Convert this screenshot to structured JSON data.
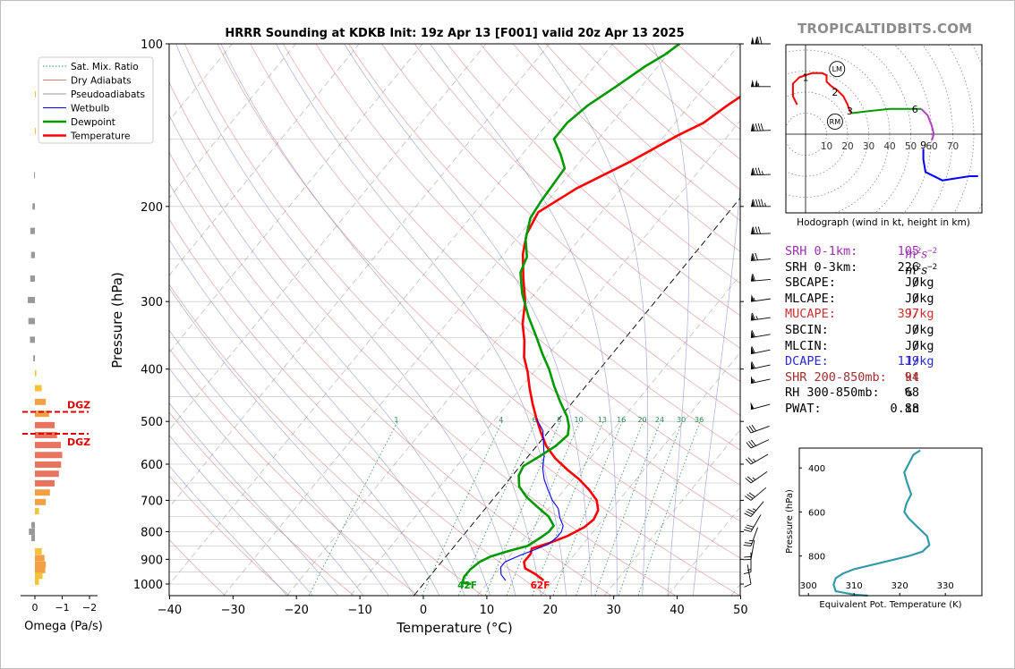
{
  "brand": "TROPICALTIDBITS.COM",
  "chart_data": [
    {
      "type": "line",
      "title": "HRRR Sounding at KDKB Init: 19z Apr 13 [F001] valid 20z Apr 13 2025",
      "xlabel": "Temperature (°C)",
      "ylabel": "Pressure (hPa)",
      "xlim": [
        -40,
        50
      ],
      "ylim": [
        1050,
        100
      ],
      "y_scale": "log",
      "x_ticks": [
        "−40",
        "−30",
        "−20",
        "−10",
        "0",
        "10",
        "20",
        "30",
        "40",
        "50"
      ],
      "y_ticks": [
        "100",
        "200",
        "300",
        "400",
        "500",
        "600",
        "700",
        "800",
        "900",
        "1000"
      ],
      "grid": true,
      "legend": {
        "position": "top-left",
        "entries": [
          {
            "name": "Sat. Mix. Ratio",
            "color": "#2e8b57"
          },
          {
            "name": "Dry Adiabats",
            "color": "#d88080"
          },
          {
            "name": "Pseudoadiabats",
            "color": "#999999"
          },
          {
            "name": "Wetbulb",
            "color": "#0000ff"
          },
          {
            "name": "Dewpoint",
            "color": "#009900"
          },
          {
            "name": "Temperature",
            "color": "#ff0000"
          }
        ]
      },
      "mixing_ratio_labels": [
        {
          "label": "1",
          "w": 1
        },
        {
          "label": "4",
          "w": 4
        },
        {
          "label": "6",
          "w": 6
        },
        {
          "label": "8",
          "w": 8
        },
        {
          "label": "10",
          "w": 10
        },
        {
          "label": "13",
          "w": 13
        },
        {
          "label": "16",
          "w": 16
        },
        {
          "label": "20",
          "w": 20
        },
        {
          "label": "24",
          "w": 24
        },
        {
          "label": "30",
          "w": 30
        },
        {
          "label": "36",
          "w": 36
        }
      ],
      "series": [
        {
          "name": "Temperature",
          "color": "#ff0000",
          "points": [
            [
              18.5,
              985
            ],
            [
              16.5,
              960
            ],
            [
              14,
              935
            ],
            [
              13,
              910
            ],
            [
              13,
              880
            ],
            [
              12.5,
              860
            ],
            [
              14.5,
              840
            ],
            [
              16.5,
              815
            ],
            [
              18,
              785
            ],
            [
              18.5,
              760
            ],
            [
              18,
              730
            ],
            [
              16.5,
              700
            ],
            [
              14,
              670
            ],
            [
              11,
              640
            ],
            [
              8,
              615
            ],
            [
              4.5,
              585
            ],
            [
              1.5,
              555
            ],
            [
              -1,
              525
            ],
            [
              -3.5,
              495
            ],
            [
              -6,
              465
            ],
            [
              -8.5,
              435
            ],
            [
              -11,
              405
            ],
            [
              -13.5,
              380
            ],
            [
              -15.5,
              355
            ],
            [
              -18,
              330
            ],
            [
              -20.5,
              300
            ],
            [
              -24,
              270
            ],
            [
              -27,
              245
            ],
            [
              -29,
              225
            ],
            [
              -30,
              205
            ],
            [
              -27,
              185
            ],
            [
              -22,
              165
            ],
            [
              -18,
              148
            ],
            [
              -15.5,
              140
            ],
            [
              -14,
              130
            ],
            [
              -12,
              120
            ],
            [
              -10,
              110
            ],
            [
              -8.5,
              103
            ],
            [
              -8,
              100
            ]
          ]
        },
        {
          "name": "Wetbulb",
          "color": "#0000ff",
          "points": [
            [
              12.5,
              985
            ],
            [
              11,
              960
            ],
            [
              10,
              930
            ],
            [
              10,
              910
            ],
            [
              11.5,
              885
            ],
            [
              13,
              865
            ],
            [
              14.5,
              845
            ],
            [
              15,
              820
            ],
            [
              15,
              800
            ],
            [
              14.5,
              780
            ],
            [
              13,
              755
            ],
            [
              11.5,
              725
            ],
            [
              9.5,
              700
            ],
            [
              7.5,
              670
            ],
            [
              5.5,
              640
            ],
            [
              3.8,
              610
            ],
            [
              2.5,
              580
            ],
            [
              0.8,
              550
            ],
            [
              -1,
              520
            ],
            [
              -3.5,
              495
            ]
          ]
        },
        {
          "name": "Dewpoint",
          "color": "#009900",
          "points": [
            [
              7.5,
              1000
            ],
            [
              6,
              995
            ],
            [
              5.5,
              970
            ],
            [
              5.5,
              940
            ],
            [
              6,
              910
            ],
            [
              7,
              890
            ],
            [
              9,
              870
            ],
            [
              11.5,
              850
            ],
            [
              12.5,
              820
            ],
            [
              13,
              800
            ],
            [
              13,
              780
            ],
            [
              11,
              750
            ],
            [
              8,
              720
            ],
            [
              5,
              690
            ],
            [
              2.5,
              660
            ],
            [
              1,
              630
            ],
            [
              0.5,
              605
            ],
            [
              1.8,
              580
            ],
            [
              3,
              555
            ],
            [
              3.5,
              530
            ],
            [
              2.5,
              510
            ],
            [
              1,
              490
            ],
            [
              -2,
              460
            ],
            [
              -5,
              430
            ],
            [
              -8,
              400
            ],
            [
              -11,
              375
            ],
            [
              -14,
              350
            ],
            [
              -18,
              320
            ],
            [
              -22,
              290
            ],
            [
              -25,
              265
            ],
            [
              -26,
              248
            ],
            [
              -28.5,
              230
            ],
            [
              -30.5,
              210
            ],
            [
              -31,
              195
            ],
            [
              -31.5,
              170
            ],
            [
              -34,
              160
            ],
            [
              -37,
              150
            ],
            [
              -37,
              140
            ],
            [
              -36,
              130
            ],
            [
              -34,
              120
            ],
            [
              -32,
              110
            ],
            [
              -30.5,
              105
            ],
            [
              -29.5,
              100
            ]
          ]
        }
      ],
      "surface_labels": [
        {
          "text": "42F",
          "t": 7,
          "p": 1003,
          "color": "#009900"
        },
        {
          "text": "62F",
          "t": 18.5,
          "p": 1003,
          "color": "#ff0000"
        }
      ]
    },
    {
      "type": "bar",
      "name": "omega-profile",
      "xlabel": "Omega (Pa/s)",
      "x_ticks": [
        "0",
        "−1",
        "−2"
      ],
      "xlim": [
        0,
        -2
      ],
      "dgz_label": "DGZ",
      "dgz_levels": [
        480,
        527
      ],
      "bars": [
        {
          "p": 124,
          "v": -0.03
        },
        {
          "p": 145,
          "v": -0.03
        },
        {
          "p": 175,
          "v": 0.03
        },
        {
          "p": 200,
          "v": 0.09
        },
        {
          "p": 222,
          "v": 0.17
        },
        {
          "p": 246,
          "v": 0.14
        },
        {
          "p": 272,
          "v": 0.17
        },
        {
          "p": 298,
          "v": 0.26
        },
        {
          "p": 326,
          "v": 0.24
        },
        {
          "p": 353,
          "v": 0.18
        },
        {
          "p": 382,
          "v": 0.06
        },
        {
          "p": 407,
          "v": -0.05
        },
        {
          "p": 434,
          "v": -0.25
        },
        {
          "p": 460,
          "v": -0.4
        },
        {
          "p": 484,
          "v": -0.52
        },
        {
          "p": 508,
          "v": -0.72
        },
        {
          "p": 530,
          "v": -0.81
        },
        {
          "p": 553,
          "v": -0.95
        },
        {
          "p": 577,
          "v": -1.0
        },
        {
          "p": 601,
          "v": -0.96
        },
        {
          "p": 625,
          "v": -0.88
        },
        {
          "p": 651,
          "v": -0.72
        },
        {
          "p": 677,
          "v": -0.55
        },
        {
          "p": 705,
          "v": -0.4
        },
        {
          "p": 733,
          "v": -0.15
        },
        {
          "p": 778,
          "v": 0.13
        },
        {
          "p": 800,
          "v": 0.22
        },
        {
          "p": 822,
          "v": 0.13
        },
        {
          "p": 870,
          "v": -0.25
        },
        {
          "p": 895,
          "v": -0.35
        },
        {
          "p": 920,
          "v": -0.4
        },
        {
          "p": 942,
          "v": -0.38
        },
        {
          "p": 965,
          "v": -0.28
        },
        {
          "p": 990,
          "v": -0.15
        }
      ]
    },
    {
      "type": "line",
      "name": "hodograph",
      "xlabel": "Hodograph (wind in kt, height in km)",
      "ring_labels": [
        "10",
        "20",
        "30",
        "40",
        "50",
        "60",
        "70"
      ],
      "storm_motion": [
        {
          "label": "LM",
          "u": 15,
          "v": 31
        },
        {
          "label": "RM",
          "u": 14,
          "v": 6
        }
      ],
      "height_labels": [
        {
          "label": "1",
          "u": 0,
          "v": 27
        },
        {
          "label": "2",
          "u": 14,
          "v": 20
        },
        {
          "label": "3",
          "u": 21,
          "v": 11
        },
        {
          "label": "6",
          "u": 52,
          "v": 12
        },
        {
          "label": "9",
          "u": 56,
          "v": -5
        }
      ],
      "segments": [
        {
          "color": "#ff0000",
          "points": [
            [
              -4,
              14
            ],
            [
              -6,
              18
            ],
            [
              -6,
              24
            ],
            [
              -3,
              27
            ],
            [
              3,
              29
            ],
            [
              8,
              29
            ],
            [
              10,
              28
            ],
            [
              10,
              25
            ],
            [
              12,
              23
            ],
            [
              15,
              21
            ],
            [
              18,
              18
            ],
            [
              20,
              14
            ],
            [
              21,
              11
            ],
            [
              22,
              10
            ]
          ]
        },
        {
          "color": "#009900",
          "points": [
            [
              22,
              10
            ],
            [
              30,
              11
            ],
            [
              40,
              12
            ],
            [
              50,
              12
            ],
            [
              55,
              12
            ]
          ]
        },
        {
          "color": "#b23fbf",
          "points": [
            [
              55,
              12
            ],
            [
              58,
              9
            ],
            [
              60,
              4
            ],
            [
              61,
              0
            ],
            [
              60,
              -3
            ]
          ]
        },
        {
          "color": "#0000ff",
          "points": [
            [
              56,
              -7
            ],
            [
              56,
              -12
            ],
            [
              57,
              -18
            ],
            [
              65,
              -22
            ],
            [
              78,
              -20
            ],
            [
              82,
              -20
            ]
          ]
        }
      ]
    },
    {
      "type": "line",
      "name": "theta-e-profile",
      "xlabel": "Equivalent Pot. Temperature (K)",
      "ylabel": "Pressure (hPa)",
      "xlim": [
        298,
        338
      ],
      "ylim": [
        980,
        310
      ],
      "x_ticks": [
        "300",
        "310",
        "320",
        "330"
      ],
      "y_ticks": [
        "400",
        "600",
        "800"
      ],
      "series": [
        {
          "name": "Theta-e",
          "color": "#3399aa",
          "points": [
            [
              324.5,
              320
            ],
            [
              323,
              340
            ],
            [
              322,
              380
            ],
            [
              321,
              420
            ],
            [
              321.5,
              460
            ],
            [
              322.5,
              520
            ],
            [
              321.5,
              560
            ],
            [
              321,
              600
            ],
            [
              322,
              630
            ],
            [
              324,
              670
            ],
            [
              326,
              710
            ],
            [
              326.5,
              750
            ],
            [
              325,
              780
            ],
            [
              322,
              800
            ],
            [
              316,
              830
            ],
            [
              310,
              860
            ],
            [
              307.5,
              880
            ],
            [
              306,
              900
            ],
            [
              305.5,
              930
            ],
            [
              306,
              960
            ],
            [
              310,
              975
            ],
            [
              313,
              980
            ]
          ]
        }
      ]
    }
  ],
  "wind_barbs": [
    {
      "p": 100,
      "spd": 120,
      "dir": 270
    },
    {
      "p": 120,
      "spd": 105,
      "dir": 270
    },
    {
      "p": 145,
      "spd": 90,
      "dir": 268
    },
    {
      "p": 175,
      "spd": 85,
      "dir": 268
    },
    {
      "p": 200,
      "spd": 95,
      "dir": 270
    },
    {
      "p": 225,
      "spd": 80,
      "dir": 268
    },
    {
      "p": 252,
      "spd": 70,
      "dir": 265
    },
    {
      "p": 275,
      "spd": 60,
      "dir": 265
    },
    {
      "p": 300,
      "spd": 55,
      "dir": 262
    },
    {
      "p": 325,
      "spd": 65,
      "dir": 262
    },
    {
      "p": 350,
      "spd": 60,
      "dir": 260
    },
    {
      "p": 375,
      "spd": 58,
      "dir": 258
    },
    {
      "p": 400,
      "spd": 60,
      "dir": 258
    },
    {
      "p": 425,
      "spd": 55,
      "dir": 258
    },
    {
      "p": 475,
      "spd": 50,
      "dir": 255
    },
    {
      "p": 525,
      "spd": 30,
      "dir": 250
    },
    {
      "p": 560,
      "spd": 30,
      "dir": 245
    },
    {
      "p": 600,
      "spd": 25,
      "dir": 240
    },
    {
      "p": 650,
      "spd": 25,
      "dir": 235
    },
    {
      "p": 700,
      "spd": 30,
      "dir": 230
    },
    {
      "p": 750,
      "spd": 35,
      "dir": 220
    },
    {
      "p": 800,
      "spd": 30,
      "dir": 210
    },
    {
      "p": 850,
      "spd": 25,
      "dir": 200
    },
    {
      "p": 900,
      "spd": 20,
      "dir": 190
    },
    {
      "p": 950,
      "spd": 15,
      "dir": 180
    },
    {
      "p": 1000,
      "spd": 10,
      "dir": 170
    }
  ],
  "parameters": [
    {
      "label": "SRH 0-1km:",
      "value": "105",
      "unit": "m2s-2",
      "color": "#9b30b0"
    },
    {
      "label": "SRH 0-3km:",
      "value": "226",
      "unit": "m2s-2",
      "color": "#000000"
    },
    {
      "label": "SBCAPE:",
      "value": "0",
      "unit": "J/kg",
      "color": "#000000"
    },
    {
      "label": "MLCAPE:",
      "value": "0",
      "unit": "J/kg",
      "color": "#000000"
    },
    {
      "label": "MUCAPE:",
      "value": "397",
      "unit": "J/kg",
      "color": "#d03030"
    },
    {
      "label": "SBCIN:",
      "value": "0",
      "unit": "J/kg",
      "color": "#000000"
    },
    {
      "label": "MLCIN:",
      "value": "0",
      "unit": "J/kg",
      "color": "#000000"
    },
    {
      "label": "DCAPE:",
      "value": "119",
      "unit": "J/kg",
      "color": "#2a2ad0"
    },
    {
      "label": "SHR 200-850mb:",
      "value": "94",
      "unit": "kt",
      "color": "#a03030"
    },
    {
      "label": "RH 300-850mb:",
      "value": "68",
      "unit": "%",
      "color": "#000000"
    },
    {
      "label": "PWAT:",
      "value": "0.88",
      "unit": "in",
      "color": "#000000"
    }
  ]
}
